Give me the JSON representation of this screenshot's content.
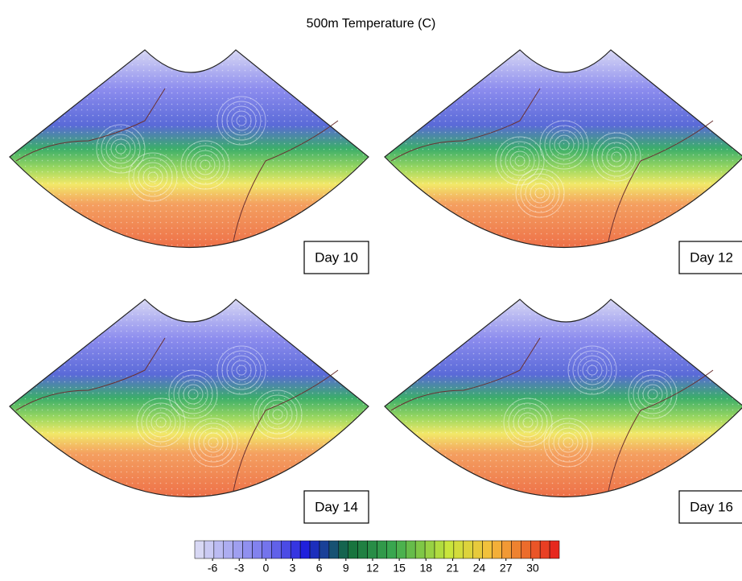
{
  "title": "500m Temperature (C)",
  "panels": [
    {
      "label": "Day 10"
    },
    {
      "label": "Day 12"
    },
    {
      "label": "Day 14"
    },
    {
      "label": "Day 16"
    }
  ],
  "colorbar": {
    "lim": [
      -8,
      33
    ],
    "ticks": [
      -6,
      -3,
      0,
      3,
      6,
      9,
      12,
      15,
      18,
      21,
      24,
      27,
      30
    ]
  }
}
